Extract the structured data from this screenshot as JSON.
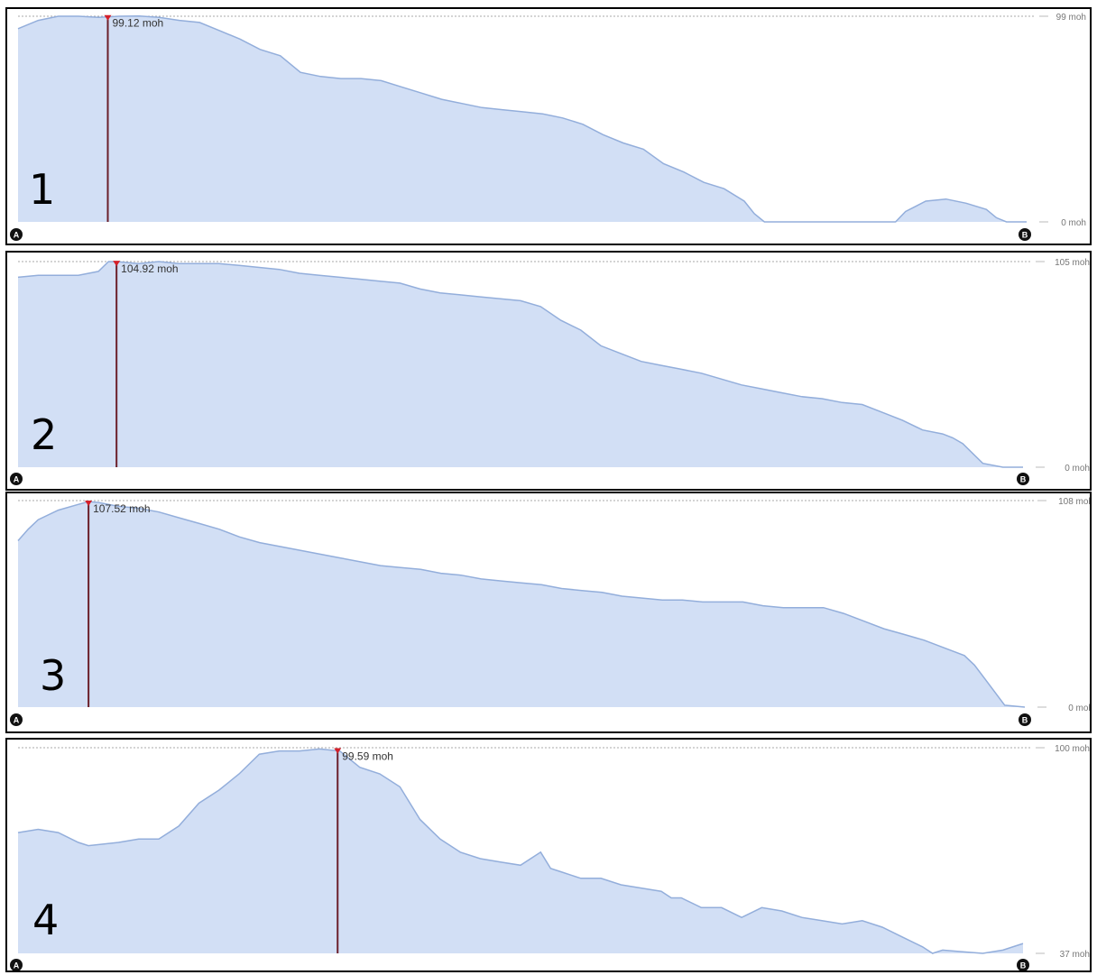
{
  "chart_data": [
    {
      "type": "area",
      "panel_label": "1",
      "ymax_label": "99 moh",
      "ymin_label": "0 moh",
      "ylim": [
        0,
        99
      ],
      "start_marker": "A",
      "end_marker": "B",
      "peak": {
        "x": 0.089,
        "y": 99.12,
        "label": "99.12 moh"
      },
      "x": [
        0,
        0.02,
        0.04,
        0.06,
        0.08,
        0.1,
        0.12,
        0.14,
        0.16,
        0.18,
        0.2,
        0.22,
        0.24,
        0.26,
        0.28,
        0.3,
        0.32,
        0.34,
        0.36,
        0.38,
        0.4,
        0.42,
        0.44,
        0.46,
        0.48,
        0.5,
        0.52,
        0.54,
        0.56,
        0.58,
        0.6,
        0.62,
        0.64,
        0.66,
        0.68,
        0.7,
        0.72,
        0.73,
        0.74,
        0.76,
        0.78,
        0.8,
        0.82,
        0.84,
        0.86,
        0.87,
        0.88,
        0.9,
        0.92,
        0.94,
        0.96,
        0.97,
        0.98,
        1.0
      ],
      "y": [
        93,
        97,
        99,
        99,
        98.5,
        99,
        99.1,
        98.5,
        97,
        96,
        92,
        88,
        83,
        80,
        72,
        70,
        69,
        69,
        68,
        65,
        62,
        59,
        57,
        55,
        54,
        53,
        52,
        50,
        47,
        42,
        38,
        35,
        28,
        24,
        19,
        16,
        10,
        4,
        0,
        0,
        0,
        0,
        0,
        0,
        0,
        0,
        5,
        10,
        11,
        9,
        6,
        2,
        0,
        0
      ]
    },
    {
      "type": "area",
      "panel_label": "2",
      "ymax_label": "105 moh",
      "ymin_label": "0 moh",
      "ylim": [
        0,
        105
      ],
      "start_marker": "A",
      "end_marker": "B",
      "peak": {
        "x": 0.098,
        "y": 104.92,
        "label": "104.92 moh"
      },
      "x": [
        0,
        0.02,
        0.04,
        0.06,
        0.08,
        0.09,
        0.1,
        0.12,
        0.14,
        0.16,
        0.18,
        0.2,
        0.22,
        0.24,
        0.26,
        0.28,
        0.3,
        0.32,
        0.34,
        0.36,
        0.38,
        0.4,
        0.42,
        0.44,
        0.46,
        0.48,
        0.5,
        0.52,
        0.54,
        0.56,
        0.58,
        0.6,
        0.62,
        0.64,
        0.66,
        0.68,
        0.7,
        0.72,
        0.74,
        0.76,
        0.78,
        0.8,
        0.82,
        0.84,
        0.86,
        0.88,
        0.9,
        0.92,
        0.93,
        0.94,
        0.96,
        0.98,
        1.0
      ],
      "y": [
        97,
        98,
        98,
        98,
        100,
        105,
        104.9,
        104,
        105,
        104,
        104,
        104,
        103,
        102,
        101,
        99,
        98,
        97,
        96,
        95,
        94,
        91,
        89,
        88,
        87,
        86,
        85,
        82,
        75,
        70,
        62,
        58,
        54,
        52,
        50,
        48,
        45,
        42,
        40,
        38,
        36,
        35,
        33,
        32,
        28,
        24,
        19,
        17,
        15,
        12,
        2,
        0,
        0
      ]
    },
    {
      "type": "area",
      "panel_label": "3",
      "ymax_label": "108 moh",
      "ymin_label": "0 moh",
      "ylim": [
        0,
        108
      ],
      "start_marker": "A",
      "end_marker": "B",
      "peak": {
        "x": 0.07,
        "y": 107.52,
        "label": "107.52 moh"
      },
      "x": [
        0,
        0.01,
        0.02,
        0.04,
        0.06,
        0.07,
        0.08,
        0.1,
        0.12,
        0.14,
        0.16,
        0.18,
        0.2,
        0.22,
        0.24,
        0.26,
        0.28,
        0.3,
        0.32,
        0.34,
        0.36,
        0.38,
        0.4,
        0.42,
        0.44,
        0.46,
        0.48,
        0.5,
        0.52,
        0.54,
        0.56,
        0.58,
        0.6,
        0.62,
        0.64,
        0.66,
        0.68,
        0.7,
        0.72,
        0.74,
        0.76,
        0.78,
        0.8,
        0.82,
        0.84,
        0.86,
        0.88,
        0.9,
        0.92,
        0.94,
        0.95,
        0.96,
        0.98,
        1.0
      ],
      "y": [
        87,
        93,
        98,
        103,
        106,
        107.5,
        107,
        105,
        104,
        102,
        99,
        96,
        93,
        89,
        86,
        84,
        82,
        80,
        78,
        76,
        74,
        73,
        72,
        70,
        69,
        67,
        66,
        65,
        64,
        62,
        61,
        60,
        58,
        57,
        56,
        56,
        55,
        55,
        55,
        53,
        52,
        52,
        52,
        49,
        45,
        41,
        38,
        35,
        31,
        27,
        22,
        15,
        1,
        0
      ]
    },
    {
      "type": "area",
      "panel_label": "4",
      "ymax_label": "100 moh",
      "ymin_label": "37 moh",
      "ylim": [
        37,
        100
      ],
      "start_marker": "A",
      "end_marker": "B",
      "peak": {
        "x": 0.318,
        "y": 99.59,
        "label": "99.59 moh"
      },
      "x": [
        0,
        0.02,
        0.04,
        0.06,
        0.07,
        0.1,
        0.12,
        0.14,
        0.16,
        0.18,
        0.2,
        0.22,
        0.24,
        0.26,
        0.28,
        0.3,
        0.32,
        0.34,
        0.36,
        0.38,
        0.4,
        0.42,
        0.44,
        0.46,
        0.48,
        0.5,
        0.52,
        0.53,
        0.54,
        0.56,
        0.58,
        0.6,
        0.62,
        0.64,
        0.65,
        0.66,
        0.68,
        0.7,
        0.72,
        0.74,
        0.76,
        0.78,
        0.8,
        0.82,
        0.84,
        0.86,
        0.88,
        0.9,
        0.91,
        0.92,
        0.94,
        0.96,
        0.98,
        1.0
      ],
      "y": [
        74,
        75,
        74,
        71,
        70,
        71,
        72,
        72,
        76,
        83,
        87,
        92,
        98,
        99,
        99,
        99.6,
        99,
        94,
        92,
        88,
        78,
        72,
        68,
        66,
        65,
        64,
        68,
        63,
        62,
        60,
        60,
        58,
        57,
        56,
        54,
        54,
        51,
        51,
        48,
        51,
        50,
        48,
        47,
        46,
        47,
        45,
        42,
        39,
        37,
        38,
        37.5,
        37,
        38,
        40
      ]
    }
  ]
}
